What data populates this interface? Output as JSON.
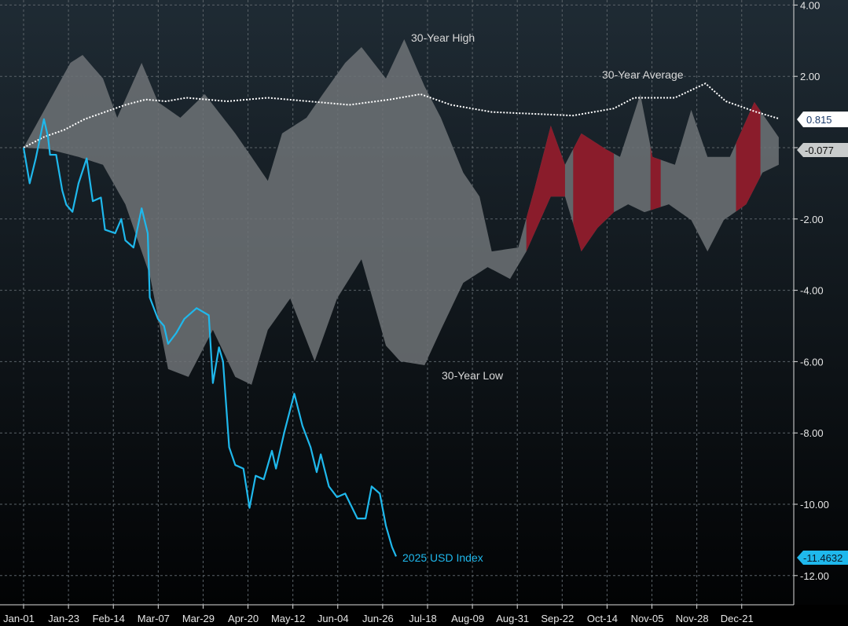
{
  "chart_data": {
    "type": "area",
    "title": "",
    "xlabel": "",
    "ylabel": "",
    "xlim": [
      0,
      371
    ],
    "ylim": [
      -12.6,
      4.0
    ],
    "grid": true,
    "x_ticks": [
      "Jan-01",
      "Jan-23",
      "Feb-14",
      "Mar-07",
      "Mar-29",
      "Apr-20",
      "May-12",
      "Jun-04",
      "Jun-26",
      "Jul-18",
      "Aug-09",
      "Aug-31",
      "Sep-22",
      "Oct-14",
      "Nov-05",
      "Nov-28",
      "Dec-21"
    ],
    "y_ticks": [
      "4.00",
      "2.00",
      "0",
      "-2.00",
      "-4.00",
      "-6.00",
      "-8.00",
      "-10.00",
      "-12.00"
    ],
    "y_tick_values": [
      4,
      2,
      0,
      -2,
      -4,
      -6,
      -8,
      -10,
      -12
    ],
    "series": [
      {
        "name": "30-Year High",
        "color": "#6e7377",
        "points": [
          [
            0,
            0
          ],
          [
            23,
            2.38
          ],
          [
            29,
            2.6
          ],
          [
            39,
            1.94
          ],
          [
            46,
            0.84
          ],
          [
            58,
            2.38
          ],
          [
            66,
            1.28
          ],
          [
            77,
            0.84
          ],
          [
            89,
            1.5
          ],
          [
            104,
            0.4
          ],
          [
            112,
            -0.26
          ],
          [
            120,
            -0.93
          ],
          [
            127,
            0.4
          ],
          [
            139,
            0.84
          ],
          [
            147,
            1.5
          ],
          [
            158,
            2.38
          ],
          [
            166,
            2.82
          ],
          [
            178,
            1.94
          ],
          [
            187,
            3.04
          ],
          [
            197,
            1.72
          ],
          [
            205,
            0.84
          ],
          [
            216,
            -0.7
          ],
          [
            224,
            -1.37
          ],
          [
            230,
            -2.91
          ],
          [
            243,
            -2.8
          ],
          [
            251,
            -1.15
          ],
          [
            259,
            0.62
          ],
          [
            266,
            -0.48
          ],
          [
            274,
            0.4
          ],
          [
            286,
            -0.04
          ],
          [
            293,
            -0.26
          ],
          [
            303,
            1.5
          ],
          [
            309,
            -0.26
          ],
          [
            320,
            -0.48
          ],
          [
            328,
            1.06
          ],
          [
            336,
            -0.26
          ],
          [
            347,
            -0.26
          ],
          [
            359,
            1.28
          ],
          [
            367,
            0.62
          ],
          [
            371,
            0.29
          ]
        ]
      },
      {
        "name": "30-Year Low",
        "color": "#6e7377",
        "points": [
          [
            0,
            0
          ],
          [
            12,
            -0.04
          ],
          [
            27,
            -0.26
          ],
          [
            39,
            -0.48
          ],
          [
            50,
            -1.59
          ],
          [
            62,
            -3.57
          ],
          [
            71,
            -6.21
          ],
          [
            81,
            -6.43
          ],
          [
            93,
            -5.11
          ],
          [
            104,
            -6.43
          ],
          [
            112,
            -6.65
          ],
          [
            120,
            -5.11
          ],
          [
            131,
            -4.23
          ],
          [
            143,
            -5.99
          ],
          [
            154,
            -4.23
          ],
          [
            166,
            -3.13
          ],
          [
            178,
            -5.55
          ],
          [
            185,
            -5.99
          ],
          [
            197,
            -6.1
          ],
          [
            205,
            -5.11
          ],
          [
            216,
            -3.79
          ],
          [
            228,
            -3.35
          ],
          [
            239,
            -3.68
          ],
          [
            247,
            -2.91
          ],
          [
            259,
            -1.37
          ],
          [
            266,
            -1.37
          ],
          [
            274,
            -2.91
          ],
          [
            282,
            -2.25
          ],
          [
            290,
            -1.81
          ],
          [
            297,
            -1.59
          ],
          [
            305,
            -1.81
          ],
          [
            317,
            -1.59
          ],
          [
            328,
            -2.03
          ],
          [
            336,
            -2.91
          ],
          [
            344,
            -2.03
          ],
          [
            355,
            -1.59
          ],
          [
            363,
            -0.7
          ],
          [
            371,
            -0.48
          ]
        ]
      },
      {
        "name": "30-Year Average",
        "color": "#ffffff",
        "style": "dotted",
        "points": [
          [
            0,
            0
          ],
          [
            10,
            0.3
          ],
          [
            20,
            0.5
          ],
          [
            30,
            0.8
          ],
          [
            40,
            1.0
          ],
          [
            50,
            1.2
          ],
          [
            60,
            1.35
          ],
          [
            70,
            1.3
          ],
          [
            80,
            1.4
          ],
          [
            100,
            1.3
          ],
          [
            120,
            1.4
          ],
          [
            140,
            1.3
          ],
          [
            160,
            1.2
          ],
          [
            180,
            1.35
          ],
          [
            195,
            1.5
          ],
          [
            210,
            1.2
          ],
          [
            230,
            1.0
          ],
          [
            250,
            0.95
          ],
          [
            270,
            0.9
          ],
          [
            290,
            1.1
          ],
          [
            300,
            1.4
          ],
          [
            320,
            1.4
          ],
          [
            335,
            1.8
          ],
          [
            345,
            1.3
          ],
          [
            360,
            1.0
          ],
          [
            371,
            0.815
          ]
        ]
      },
      {
        "name": "2025 USD Index",
        "color": "#1fb8ec",
        "points": [
          [
            0,
            0
          ],
          [
            3,
            -1.0
          ],
          [
            6,
            -0.3
          ],
          [
            10,
            0.8
          ],
          [
            12,
            0.3
          ],
          [
            13,
            -0.2
          ],
          [
            16,
            -0.2
          ],
          [
            19,
            -1.2
          ],
          [
            21,
            -1.6
          ],
          [
            24,
            -1.8
          ],
          [
            27,
            -1.0
          ],
          [
            31,
            -0.3
          ],
          [
            34,
            -1.5
          ],
          [
            38,
            -1.4
          ],
          [
            40,
            -2.3
          ],
          [
            45,
            -2.4
          ],
          [
            48,
            -2.0
          ],
          [
            50,
            -2.6
          ],
          [
            54,
            -2.8
          ],
          [
            58,
            -1.7
          ],
          [
            61,
            -2.4
          ],
          [
            62,
            -4.2
          ],
          [
            66,
            -4.8
          ],
          [
            69,
            -5.0
          ],
          [
            71,
            -5.5
          ],
          [
            75,
            -5.2
          ],
          [
            79,
            -4.8
          ],
          [
            85,
            -4.5
          ],
          [
            88,
            -4.6
          ],
          [
            91,
            -4.7
          ],
          [
            93,
            -6.6
          ],
          [
            96,
            -5.6
          ],
          [
            98,
            -6.0
          ],
          [
            101,
            -8.4
          ],
          [
            104,
            -8.9
          ],
          [
            108,
            -9.0
          ],
          [
            111,
            -10.1
          ],
          [
            114,
            -9.2
          ],
          [
            118,
            -9.3
          ],
          [
            122,
            -8.5
          ],
          [
            124,
            -9.0
          ],
          [
            128,
            -8.0
          ],
          [
            133,
            -6.9
          ],
          [
            137,
            -7.8
          ],
          [
            141,
            -8.4
          ],
          [
            144,
            -9.1
          ],
          [
            146,
            -8.6
          ],
          [
            150,
            -9.5
          ],
          [
            154,
            -9.8
          ],
          [
            158,
            -9.7
          ],
          [
            164,
            -10.4
          ],
          [
            168,
            -10.4
          ],
          [
            171,
            -9.5
          ],
          [
            175,
            -9.7
          ],
          [
            178,
            -10.6
          ],
          [
            181,
            -11.2
          ],
          [
            183,
            -11.4632
          ]
        ]
      }
    ],
    "highlight_ranges": {
      "color": "#8a1c2b",
      "days": [
        [
          247,
          266
        ],
        [
          270,
          290
        ],
        [
          308,
          313
        ],
        [
          350,
          362
        ]
      ]
    },
    "annotations": {
      "high": "30-Year High",
      "average": "30-Year Average",
      "low": "30-Year Low",
      "usd": "2025 USD Index"
    },
    "last_values": {
      "average": "0.815",
      "range": "-0.077",
      "usd": "-11.4632"
    }
  }
}
